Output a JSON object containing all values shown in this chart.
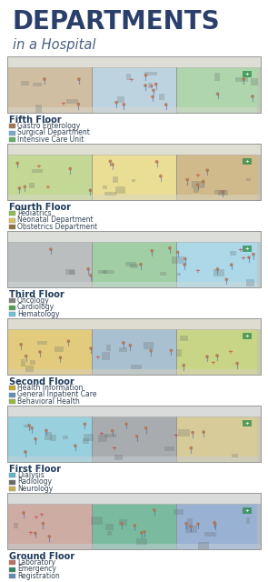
{
  "title_line1": "DEPARTMENTS",
  "title_line2": "in a Hospital",
  "background_color": "#FFFFFF",
  "title_color": "#2B3F6B",
  "subtitle_color": "#4A6080",
  "floor_label_color": "#1E3A5A",
  "dept_text_color": "#334455",
  "legend_font_size": 5.5,
  "floor_font_size": 7.0,
  "title_font_size": 20,
  "subtitle_font_size": 10.5,
  "floors": [
    {
      "name": "Fifth Floor",
      "departments": [
        {
          "label": "Gastro Enterology",
          "color": "#A07850"
        },
        {
          "label": "Surgical Department",
          "color": "#7AAAC8"
        },
        {
          "label": "Intensive Care Unit",
          "color": "#60B060"
        }
      ],
      "room_colors": [
        "#C4A882",
        "#A8C8E0",
        "#90CC90"
      ],
      "floor_color": "#D8D8D0",
      "wall_color": "#E8E8E0",
      "accent": "#88AA88"
    },
    {
      "name": "Fourth Floor",
      "departments": [
        {
          "label": "Pediatrics",
          "color": "#90BC50"
        },
        {
          "label": "Neonatal Department",
          "color": "#D8C060"
        },
        {
          "label": "Obstetrics Department",
          "color": "#907040"
        }
      ],
      "room_colors": [
        "#B0D070",
        "#ECD870",
        "#C4A060"
      ],
      "floor_color": "#D8D8C8",
      "wall_color": "#E8E8D8",
      "accent": "#AACC66"
    },
    {
      "name": "Third Floor",
      "departments": [
        {
          "label": "Oncology",
          "color": "#808080"
        },
        {
          "label": "Cardiology",
          "color": "#50A050"
        },
        {
          "label": "Hematology",
          "color": "#70C0D8"
        }
      ],
      "room_colors": [
        "#A8A8A8",
        "#80C080",
        "#90D0E8"
      ],
      "floor_color": "#D0D8D8",
      "wall_color": "#E0E8E8",
      "accent": "#70B8C8"
    },
    {
      "name": "Second Floor",
      "departments": [
        {
          "label": "Health Information",
          "color": "#C8A830"
        },
        {
          "label": "General Inpatient Care",
          "color": "#6090B8"
        },
        {
          "label": "Behavioral Health",
          "color": "#98B840"
        }
      ],
      "room_colors": [
        "#E0C050",
        "#88B0D0",
        "#B8D060"
      ],
      "floor_color": "#D8D0C0",
      "wall_color": "#E8E0D0",
      "accent": "#90B0C8"
    },
    {
      "name": "First Floor",
      "departments": [
        {
          "label": "Dialysis",
          "color": "#58B8C8"
        },
        {
          "label": "Radiology",
          "color": "#686868"
        },
        {
          "label": "Neurology",
          "color": "#C8B050"
        }
      ],
      "room_colors": [
        "#78C8D8",
        "#909090",
        "#D8C070"
      ],
      "floor_color": "#C8D0D8",
      "wall_color": "#D8E0E8",
      "accent": "#88C4D4"
    },
    {
      "name": "Ground Floor",
      "departments": [
        {
          "label": "Laboratory",
          "color": "#B87060"
        },
        {
          "label": "Emergency",
          "color": "#308860"
        },
        {
          "label": "Registration",
          "color": "#6088B8"
        }
      ],
      "room_colors": [
        "#C89080",
        "#48A878",
        "#7898C8"
      ],
      "floor_color": "#C8D0D8",
      "wall_color": "#D8E0E8",
      "accent": "#58A870"
    }
  ]
}
